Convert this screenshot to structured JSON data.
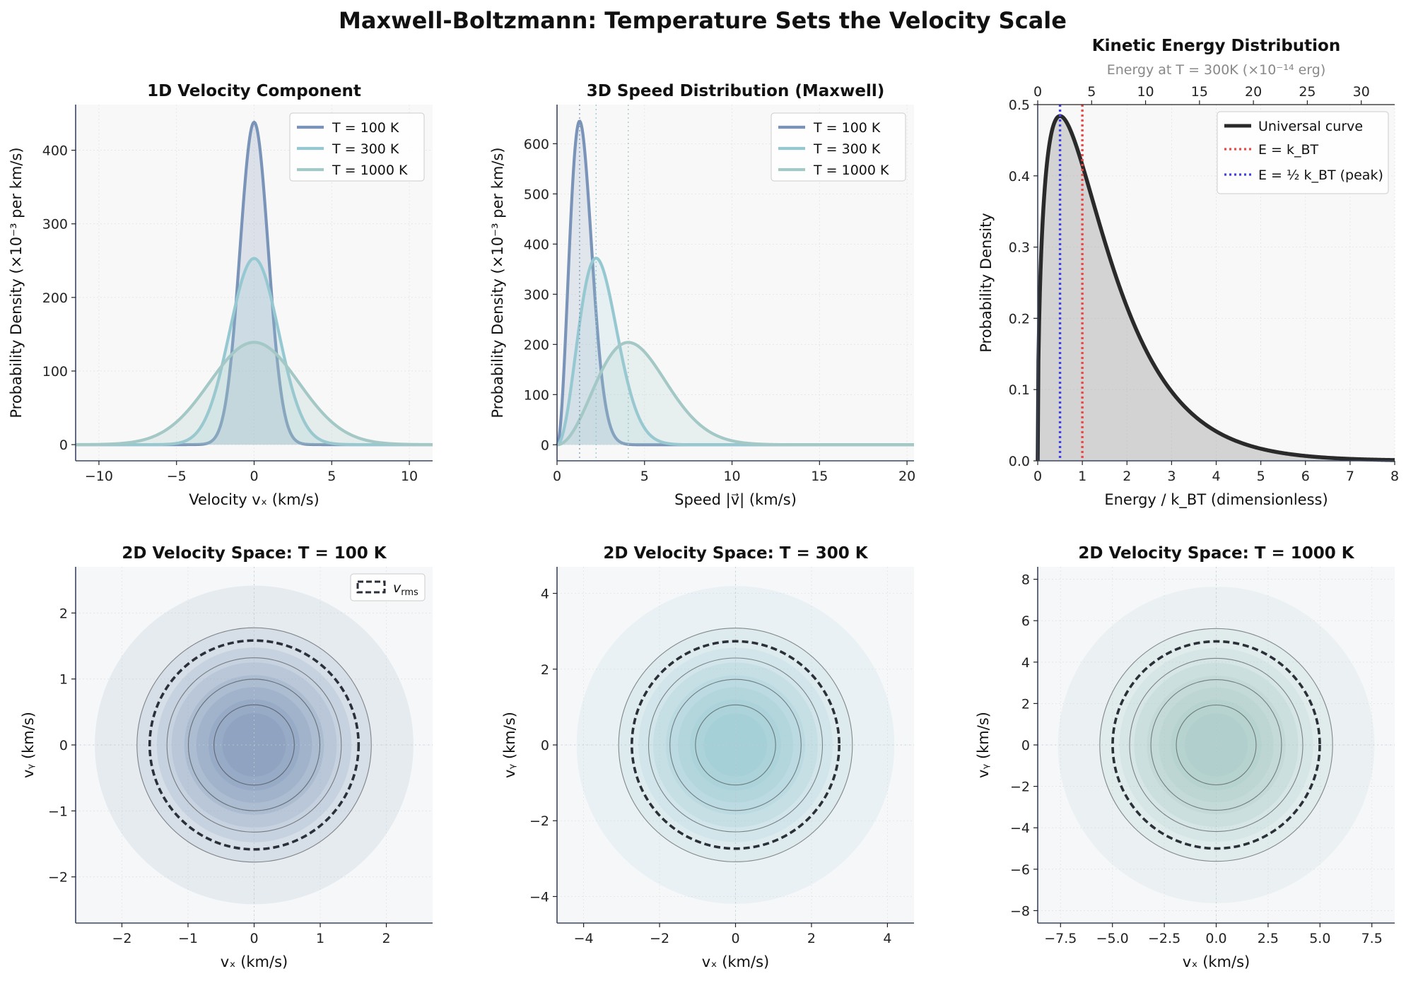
{
  "title": "Maxwell-Boltzmann: Temperature Sets the Velocity Scale",
  "colors": {
    "t100": "#7a93b8",
    "t300": "#96c8d2",
    "t1000": "#a3c8c5",
    "universal": "#2a2a2a",
    "ekt": "#f04545",
    "peak": "#4040e8",
    "rms": "#2b2f38",
    "panel_bg": "#f8f8f8",
    "spine": "#3a4560"
  },
  "chart_data": [
    {
      "type": "line",
      "title": "1D Velocity Component",
      "xlabel": "Velocity vₓ (km/s)",
      "ylabel": "Probability Density (×10⁻³ per km/s)",
      "xlim": [
        -11.5,
        11.5
      ],
      "ylim": [
        -22,
        462
      ],
      "xticks": [
        -10,
        -5,
        0,
        5,
        10
      ],
      "yticks": [
        0,
        100,
        200,
        300,
        400
      ],
      "legend_position": "upper-right",
      "series": [
        {
          "name": "T = 100 K",
          "peak_x": 0,
          "peak_y": 438,
          "sigma_kms": 0.91,
          "color_key": "t100",
          "fill": true
        },
        {
          "name": "T = 300 K",
          "peak_x": 0,
          "peak_y": 253,
          "sigma_kms": 1.58,
          "color_key": "t300",
          "fill": true
        },
        {
          "name": "T = 1000 K",
          "peak_x": 0,
          "peak_y": 139,
          "sigma_kms": 2.88,
          "color_key": "t1000",
          "fill": true
        }
      ]
    },
    {
      "type": "line",
      "title": "3D Speed Distribution (Maxwell)",
      "xlabel": "Speed |v⃗| (km/s)",
      "ylabel": "Probability Density (×10⁻³ per km/s)",
      "xlim": [
        0,
        20.4
      ],
      "ylim": [
        -32,
        678
      ],
      "xticks": [
        0,
        5,
        10,
        15,
        20
      ],
      "yticks": [
        0,
        100,
        200,
        300,
        400,
        500,
        600
      ],
      "legend_position": "upper-right",
      "series": [
        {
          "name": "T = 100 K",
          "most_probable_speed": 1.29,
          "peak_y": 645,
          "color_key": "t100",
          "fill": true
        },
        {
          "name": "T = 300 K",
          "most_probable_speed": 2.23,
          "peak_y": 372,
          "color_key": "t300",
          "fill": true
        },
        {
          "name": "T = 1000 K",
          "most_probable_speed": 4.07,
          "peak_y": 204,
          "color_key": "t1000",
          "fill": true
        }
      ],
      "reference_lines": [
        1.29,
        2.23,
        4.07
      ]
    },
    {
      "type": "area",
      "title": "Kinetic Energy Distribution",
      "top_axis_label": "Energy at T = 300K (×10⁻¹⁴ erg)",
      "top_xticks": [
        0,
        5,
        10,
        15,
        20,
        25,
        30
      ],
      "top_xlim": [
        0,
        33.1
      ],
      "xlabel": "Energy / k_BT (dimensionless)",
      "ylabel": "Probability Density",
      "xlim": [
        0,
        8
      ],
      "ylim": [
        0,
        0.5
      ],
      "xticks": [
        0,
        1,
        2,
        3,
        4,
        5,
        6,
        7,
        8
      ],
      "yticks": [
        0.0,
        0.1,
        0.2,
        0.3,
        0.4,
        0.5
      ],
      "peak": {
        "x": 0.5,
        "y": 0.484
      },
      "legend_position": "upper-right",
      "legend": [
        "Universal curve",
        "E = k_BT",
        "E = ½ k_BT (peak)"
      ],
      "vlines": [
        {
          "x": 1.0,
          "color_key": "ekt"
        },
        {
          "x": 0.5,
          "color_key": "peak"
        }
      ]
    },
    {
      "type": "heatmap",
      "title": "2D Velocity Space: T = 100 K",
      "xlabel": "vₓ (km/s)",
      "ylabel": "vᵧ (km/s)",
      "xlim": [
        -2.7,
        2.7
      ],
      "ylim": [
        -2.7,
        2.7
      ],
      "xticks": [
        -2,
        -1,
        0,
        1,
        2
      ],
      "yticks": [
        -2,
        -1,
        0,
        1,
        2
      ],
      "v_rms": 1.58,
      "sigma_kms": 0.91,
      "color_key": "t100",
      "legend": [
        "v_rms"
      ],
      "legend_position": "upper-right"
    },
    {
      "type": "heatmap",
      "title": "2D Velocity Space: T = 300 K",
      "xlabel": "vₓ (km/s)",
      "ylabel": "vᵧ (km/s)",
      "xlim": [
        -4.7,
        4.7
      ],
      "ylim": [
        -4.7,
        4.7
      ],
      "xticks": [
        -4,
        -2,
        0,
        2,
        4
      ],
      "yticks": [
        -4,
        -2,
        0,
        2,
        4
      ],
      "v_rms": 2.73,
      "sigma_kms": 1.58,
      "color_key": "t300"
    },
    {
      "type": "heatmap",
      "title": "2D Velocity Space: T = 1000 K",
      "xlabel": "vₓ (km/s)",
      "ylabel": "vᵧ (km/s)",
      "xlim": [
        -8.6,
        8.6
      ],
      "ylim": [
        -8.6,
        8.6
      ],
      "xticks": [
        -7.5,
        -5.0,
        -2.5,
        0.0,
        2.5,
        5.0,
        7.5
      ],
      "yticks": [
        -8,
        -6,
        -4,
        -2,
        0,
        2,
        4,
        6,
        8
      ],
      "v_rms": 4.99,
      "sigma_kms": 2.88,
      "color_key": "t1000"
    }
  ]
}
